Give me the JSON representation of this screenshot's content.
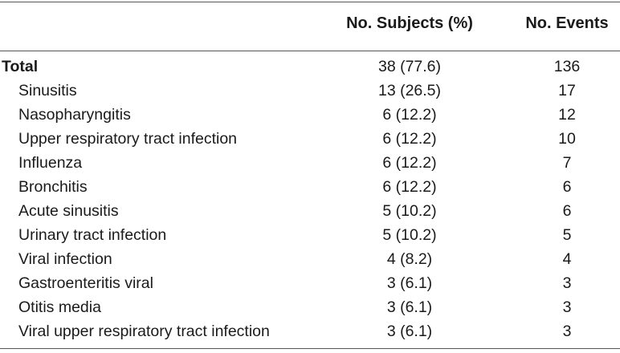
{
  "table": {
    "headers": {
      "label": "",
      "subjects": "No. Subjects (%)",
      "events": "No. Events"
    },
    "rows": [
      {
        "label": "Total",
        "subjects": "38 (77.6)",
        "events": "136"
      },
      {
        "label": "Sinusitis",
        "subjects": "13 (26.5)",
        "events": "17"
      },
      {
        "label": "Nasopharyngitis",
        "subjects": "6 (12.2)",
        "events": "12"
      },
      {
        "label": "Upper respiratory tract infection",
        "subjects": "6 (12.2)",
        "events": "10"
      },
      {
        "label": "Influenza",
        "subjects": "6 (12.2)",
        "events": "7"
      },
      {
        "label": "Bronchitis",
        "subjects": "6 (12.2)",
        "events": "6"
      },
      {
        "label": "Acute sinusitis",
        "subjects": "5 (10.2)",
        "events": "6"
      },
      {
        "label": "Urinary tract infection",
        "subjects": "5 (10.2)",
        "events": "5"
      },
      {
        "label": "Viral infection",
        "subjects": "4 (8.2)",
        "events": "4"
      },
      {
        "label": "Gastroenteritis viral",
        "subjects": "3 (6.1)",
        "events": "3"
      },
      {
        "label": "Otitis media",
        "subjects": "3 (6.1)",
        "events": "3"
      },
      {
        "label": "Viral upper respiratory tract infection",
        "subjects": "3 (6.1)",
        "events": "3"
      }
    ]
  }
}
